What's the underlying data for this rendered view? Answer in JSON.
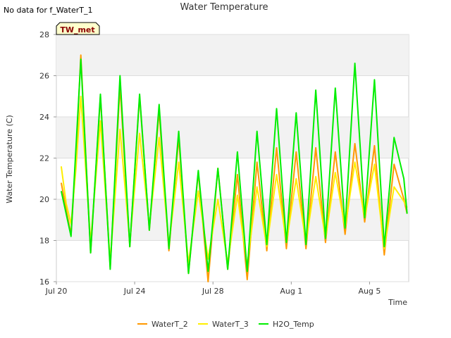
{
  "chart_data": {
    "type": "line",
    "title": "Water Temperature",
    "note": "No data for f_WaterT_1",
    "badge": "TW_met",
    "xlabel": "Time",
    "ylabel": "Water Temperature (C)",
    "ylim": [
      16,
      28
    ],
    "xlim": [
      "2024-07-20",
      "2024-08-07"
    ],
    "year_note": "",
    "x_ticks": [
      {
        "date": "2024-07-20",
        "label": "Jul 20"
      },
      {
        "date": "2024-07-24",
        "label": "Jul 24"
      },
      {
        "date": "2024-07-28",
        "label": "Jul 28"
      },
      {
        "date": "2024-08-01",
        "label": "Aug 1"
      },
      {
        "date": "2024-08-05",
        "label": "Aug 5"
      }
    ],
    "y_ticks": [
      16,
      18,
      20,
      22,
      24,
      26,
      28
    ],
    "grid": "horizontal bands",
    "legend_position": "bottom",
    "series": [
      {
        "name": "WaterT_2",
        "color": "#ff9900",
        "x": [
          "2024-07-20 06:00",
          "2024-07-20 12:00",
          "2024-07-20 18:00",
          "2024-07-21 00:00",
          "2024-07-21 06:00",
          "2024-07-21 18:00",
          "2024-07-22 06:00",
          "2024-07-22 18:00",
          "2024-07-23 06:00",
          "2024-07-23 18:00",
          "2024-07-24 06:00",
          "2024-07-24 18:00",
          "2024-07-25 06:00",
          "2024-07-25 18:00",
          "2024-07-26 06:00",
          "2024-07-26 18:00",
          "2024-07-27 06:00",
          "2024-07-27 18:00",
          "2024-07-28 06:00",
          "2024-07-28 18:00",
          "2024-07-29 06:00",
          "2024-07-29 18:00",
          "2024-07-30 06:00",
          "2024-07-30 18:00",
          "2024-07-31 06:00",
          "2024-07-31 18:00",
          "2024-08-01 06:00",
          "2024-08-01 18:00",
          "2024-08-02 06:00",
          "2024-08-02 18:00",
          "2024-08-03 06:00",
          "2024-08-03 18:00",
          "2024-08-04 06:00",
          "2024-08-04 18:00",
          "2024-08-05 06:00",
          "2024-08-05 18:00",
          "2024-08-06 06:00",
          "2024-08-06 18:00",
          "2024-08-06 22:00"
        ],
        "y": [
          20.8,
          19.5,
          18.3,
          22.0,
          27.0,
          17.4,
          25.0,
          16.7,
          25.5,
          17.7,
          25.0,
          18.5,
          24.3,
          17.5,
          23.0,
          16.4,
          21.3,
          16.0,
          21.5,
          16.6,
          21.2,
          16.1,
          21.8,
          17.5,
          22.5,
          17.6,
          22.3,
          17.6,
          22.5,
          17.9,
          22.3,
          18.3,
          22.7,
          18.9,
          22.6,
          17.3,
          21.7,
          20.0,
          19.3
        ]
      },
      {
        "name": "WaterT_3",
        "color": "#ffee00",
        "x": [
          "2024-07-20 06:00",
          "2024-07-20 12:00",
          "2024-07-20 18:00",
          "2024-07-21 00:00",
          "2024-07-21 06:00",
          "2024-07-21 18:00",
          "2024-07-22 06:00",
          "2024-07-22 18:00",
          "2024-07-23 06:00",
          "2024-07-23 18:00",
          "2024-07-24 06:00",
          "2024-07-24 18:00",
          "2024-07-25 06:00",
          "2024-07-25 18:00",
          "2024-07-26 06:00",
          "2024-07-26 18:00",
          "2024-07-27 06:00",
          "2024-07-27 18:00",
          "2024-07-28 06:00",
          "2024-07-28 18:00",
          "2024-07-29 06:00",
          "2024-07-29 18:00",
          "2024-07-30 06:00",
          "2024-07-30 18:00",
          "2024-07-31 06:00",
          "2024-07-31 18:00",
          "2024-08-01 06:00",
          "2024-08-01 18:00",
          "2024-08-02 06:00",
          "2024-08-02 18:00",
          "2024-08-03 06:00",
          "2024-08-03 18:00",
          "2024-08-04 06:00",
          "2024-08-04 18:00",
          "2024-08-05 06:00",
          "2024-08-05 18:00",
          "2024-08-06 06:00",
          "2024-08-06 18:00",
          "2024-08-06 22:00"
        ],
        "y": [
          21.6,
          19.8,
          18.8,
          21.5,
          25.0,
          17.9,
          23.8,
          17.0,
          23.4,
          17.9,
          23.2,
          18.7,
          23.0,
          17.8,
          21.8,
          16.9,
          20.4,
          17.1,
          20.0,
          16.9,
          20.2,
          16.8,
          20.6,
          17.7,
          21.2,
          17.9,
          21.0,
          17.9,
          21.1,
          18.1,
          21.3,
          18.6,
          21.8,
          19.1,
          21.7,
          17.6,
          20.6,
          19.9,
          19.6
        ]
      },
      {
        "name": "H2O_Temp",
        "color": "#00ee00",
        "x": [
          "2024-07-20 06:00",
          "2024-07-20 12:00",
          "2024-07-20 18:00",
          "2024-07-21 00:00",
          "2024-07-21 06:00",
          "2024-07-21 18:00",
          "2024-07-22 06:00",
          "2024-07-22 18:00",
          "2024-07-23 06:00",
          "2024-07-23 18:00",
          "2024-07-24 06:00",
          "2024-07-24 18:00",
          "2024-07-25 06:00",
          "2024-07-25 18:00",
          "2024-07-26 06:00",
          "2024-07-26 18:00",
          "2024-07-27 06:00",
          "2024-07-27 18:00",
          "2024-07-28 06:00",
          "2024-07-28 18:00",
          "2024-07-29 06:00",
          "2024-07-29 18:00",
          "2024-07-30 06:00",
          "2024-07-30 18:00",
          "2024-07-31 06:00",
          "2024-07-31 18:00",
          "2024-08-01 06:00",
          "2024-08-01 18:00",
          "2024-08-02 06:00",
          "2024-08-02 18:00",
          "2024-08-03 06:00",
          "2024-08-03 18:00",
          "2024-08-04 06:00",
          "2024-08-04 18:00",
          "2024-08-05 06:00",
          "2024-08-05 18:00",
          "2024-08-06 06:00",
          "2024-08-06 18:00",
          "2024-08-06 22:00"
        ],
        "y": [
          20.4,
          19.3,
          18.2,
          22.5,
          26.8,
          17.4,
          25.1,
          16.6,
          26.0,
          17.7,
          25.1,
          18.5,
          24.6,
          17.6,
          23.3,
          16.4,
          21.4,
          16.5,
          21.5,
          16.6,
          22.3,
          16.5,
          23.3,
          17.8,
          24.4,
          17.9,
          24.2,
          17.8,
          25.3,
          18.1,
          25.4,
          18.6,
          26.6,
          19.1,
          25.8,
          17.7,
          23.0,
          21.0,
          19.3
        ]
      }
    ]
  }
}
